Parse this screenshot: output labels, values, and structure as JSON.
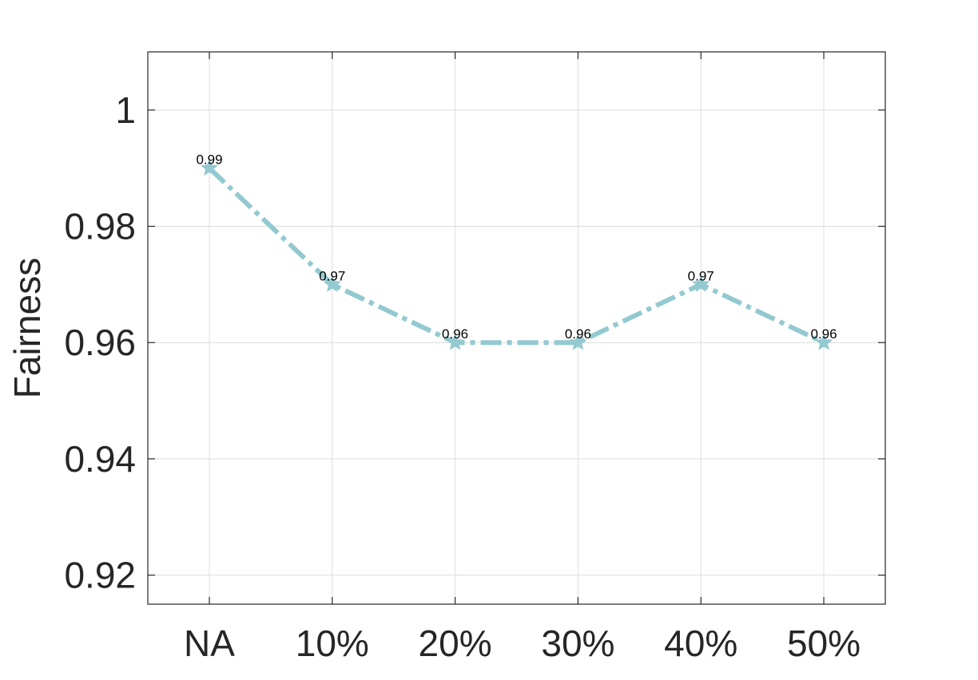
{
  "chart_data": {
    "type": "line",
    "categories": [
      "NA",
      "10%",
      "20%",
      "30%",
      "40%",
      "50%"
    ],
    "series": [
      {
        "values": [
          0.99,
          0.97,
          0.96,
          0.96,
          0.97,
          0.96
        ],
        "color": "#93c9d0",
        "line_style": "dashed",
        "marker": "pentagram"
      }
    ],
    "data_labels": [
      "0.99",
      "0.97",
      "0.96",
      "0.96",
      "0.97",
      "0.96"
    ],
    "title": "",
    "xlabel": "",
    "ylabel": "Fairness",
    "ylim": [
      0.915,
      1.01
    ],
    "yticks": [
      0.92,
      0.94,
      0.96,
      0.98,
      1
    ],
    "ytick_labels": [
      "0.92",
      "0.94",
      "0.96",
      "0.98",
      "1"
    ],
    "grid": true,
    "legend": "none"
  }
}
